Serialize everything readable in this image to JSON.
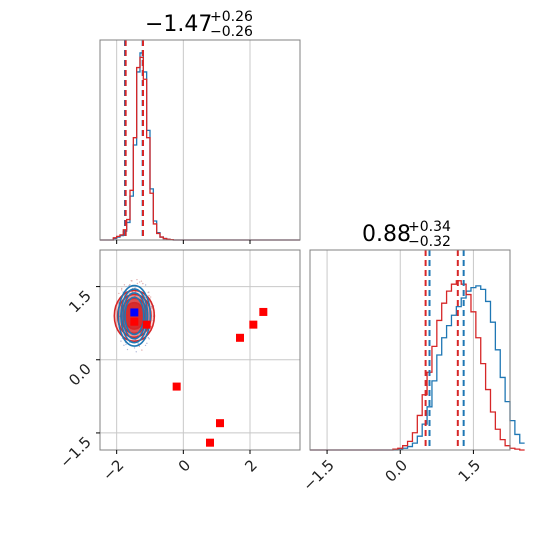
{
  "chart_data": {
    "type": "corner",
    "colors": {
      "blue": "#1f77b4",
      "red": "#d62728",
      "truth": "#ff0000",
      "truth_blue": "#0000ff",
      "grid": "#c8c8c8",
      "frame": "#808080"
    },
    "titles": [
      {
        "main": "−1.47",
        "sup": "+0.26",
        "sub": "−0.26"
      },
      {
        "main": "0.88",
        "sup": "+0.34",
        "sub": "−0.32"
      }
    ],
    "axes": {
      "x1": {
        "range": [
          -2.5,
          3.5
        ],
        "ticks": [
          -2,
          0,
          2
        ],
        "tick_labels": [
          "−2",
          "0",
          "2"
        ]
      },
      "y2": {
        "range": [
          -1.85,
          2.25
        ],
        "ticks": [
          -1.5,
          0.0,
          1.5
        ],
        "tick_labels": [
          "−1.5",
          "0.0",
          "1.5"
        ]
      },
      "x2": {
        "range": [
          -1.85,
          2.25
        ],
        "ticks": [
          -1.5,
          0.0,
          1.5
        ],
        "tick_labels": [
          "−1.5",
          "0.0",
          "1.5"
        ]
      }
    },
    "hist1": {
      "x_start": -2.5,
      "bin_width": 0.1,
      "y_max": 13,
      "blue": [
        0,
        0,
        0,
        0,
        0.1,
        0.2,
        0.3,
        0.6,
        1.2,
        3,
        6.5,
        11.5,
        12.8,
        11.5,
        7.5,
        3.5,
        1.3,
        0.5,
        0.2,
        0.1,
        0.05,
        0.02,
        0,
        0,
        0,
        0,
        0,
        0,
        0,
        0,
        0,
        0,
        0,
        0,
        0,
        0,
        0,
        0,
        0,
        0,
        0,
        0,
        0,
        0,
        0,
        0,
        0,
        0,
        0,
        0,
        0,
        0,
        0,
        0,
        0,
        0,
        0,
        0,
        0,
        0
      ],
      "red": [
        0,
        0,
        0,
        0,
        0.15,
        0.25,
        0.35,
        0.7,
        1.4,
        3.4,
        7,
        11.8,
        12.5,
        11,
        7,
        3.2,
        1.1,
        0.45,
        0.2,
        0.1,
        0.05,
        0.02,
        0,
        0,
        0,
        0,
        0,
        0,
        0,
        0,
        0,
        0,
        0,
        0,
        0,
        0,
        0,
        0,
        0,
        0,
        0,
        0,
        0,
        0,
        0,
        0,
        0,
        0,
        0,
        0,
        0,
        0,
        0,
        0,
        0,
        0,
        0,
        0,
        0,
        0
      ],
      "quantiles_blue": [
        -1.75,
        -1.22
      ],
      "quantiles_red": [
        -1.73,
        -1.21
      ]
    },
    "hist2": {
      "x_start": -1.85,
      "bin_width": 0.1,
      "y_max": 11,
      "blue": [
        0,
        0,
        0,
        0,
        0,
        0,
        0,
        0,
        0,
        0,
        0,
        0,
        0,
        0,
        0,
        0,
        0,
        0,
        0.05,
        0.1,
        0.2,
        0.4,
        0.8,
        1.5,
        2.5,
        4,
        5.5,
        6.5,
        7.2,
        7.8,
        8.3,
        8.8,
        9.2,
        9.4,
        9.5,
        9.3,
        8.6,
        7.4,
        5.8,
        4.2,
        2.8,
        1.7,
        0.9,
        0.4
      ],
      "red": [
        0,
        0,
        0,
        0,
        0,
        0,
        0,
        0,
        0,
        0,
        0,
        0,
        0,
        0,
        0,
        0,
        0,
        0.05,
        0.1,
        0.25,
        0.5,
        1,
        2,
        3.2,
        4.5,
        6,
        7.5,
        8.5,
        9.2,
        9.6,
        9.8,
        9.6,
        9,
        8,
        6.5,
        5,
        3.5,
        2.2,
        1.2,
        0.6,
        0.25,
        0.1,
        0.05,
        0
      ],
      "quantiles_blue": [
        0.6,
        1.3
      ],
      "quantiles_red": [
        0.52,
        1.18
      ]
    },
    "scatter_2d": {
      "blue_levels": [
        {
          "rx": 0.48,
          "ry": 0.62
        },
        {
          "rx": 0.4,
          "ry": 0.55
        },
        {
          "rx": 0.34,
          "ry": 0.47
        },
        {
          "rx": 0.28,
          "ry": 0.38
        }
      ],
      "red_levels": [
        {
          "rx": 0.6,
          "ry": 0.52
        },
        {
          "rx": 0.5,
          "ry": 0.44
        },
        {
          "rx": 0.4,
          "ry": 0.36
        },
        {
          "rx": 0.3,
          "ry": 0.27
        }
      ],
      "center": {
        "x": -1.47,
        "y": 0.9
      },
      "truth_blue": {
        "x": -1.47,
        "y": 0.97
      },
      "truth_red_points": [
        {
          "x": -1.47,
          "y": 0.78
        },
        {
          "x": -1.1,
          "y": 0.72
        },
        {
          "x": -0.2,
          "y": -0.55
        },
        {
          "x": 1.1,
          "y": -1.3
        },
        {
          "x": 0.8,
          "y": -1.7
        },
        {
          "x": 1.7,
          "y": 0.45
        },
        {
          "x": 2.1,
          "y": 0.72
        },
        {
          "x": 2.4,
          "y": 0.98
        }
      ]
    }
  }
}
